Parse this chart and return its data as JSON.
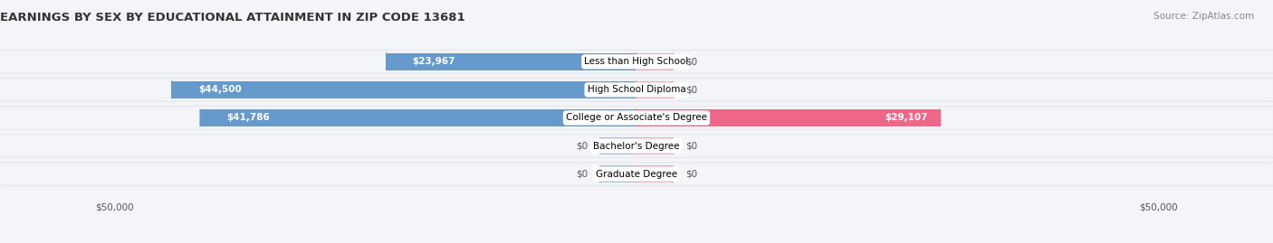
{
  "title": "EARNINGS BY SEX BY EDUCATIONAL ATTAINMENT IN ZIP CODE 13681",
  "source": "Source: ZipAtlas.com",
  "categories": [
    "Less than High School",
    "High School Diploma",
    "College or Associate's Degree",
    "Bachelor's Degree",
    "Graduate Degree"
  ],
  "male_values": [
    23967,
    44500,
    41786,
    0,
    0
  ],
  "female_values": [
    0,
    0,
    29107,
    0,
    0
  ],
  "male_label_values": [
    "$23,967",
    "$44,500",
    "$41,786",
    "$0",
    "$0"
  ],
  "female_label_values": [
    "$0",
    "$0",
    "$29,107",
    "$0",
    "$0"
  ],
  "male_color": "#6699cc",
  "female_color": "#ee6688",
  "male_color_light": "#aac0dd",
  "female_color_light": "#f4aabb",
  "row_bg_color": "#e8eaee",
  "row_bg_inner": "#f4f5f8",
  "axis_max": 50000,
  "stub_val": 3500,
  "x_tick_label_left": "$50,000",
  "x_tick_label_right": "$50,000",
  "title_fontsize": 9.5,
  "label_fontsize": 7.5,
  "category_fontsize": 7.5,
  "source_fontsize": 7.5,
  "background_color": "#f4f5f8"
}
